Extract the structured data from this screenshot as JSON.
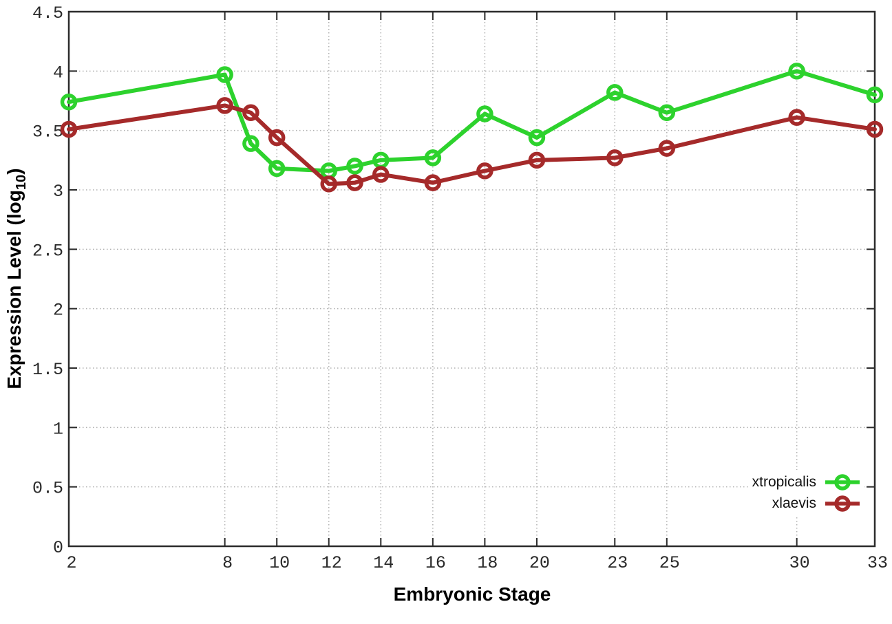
{
  "chart_data": {
    "type": "line",
    "title": "",
    "xlabel": "Embryonic Stage",
    "ylabel": "Expression Level (log10)",
    "ylabel_parts": {
      "main": "Expression Level (log",
      "sub": "10",
      "close": ")"
    },
    "x": [
      2,
      8,
      9,
      10,
      12,
      13,
      14,
      16,
      18,
      20,
      23,
      25,
      30,
      33
    ],
    "series": [
      {
        "name": "xtropicalis",
        "color": "#2dd22d",
        "marker": "open-circle",
        "values": [
          3.74,
          3.97,
          3.39,
          3.18,
          3.16,
          3.2,
          3.25,
          3.27,
          3.64,
          3.44,
          3.82,
          3.65,
          4.0,
          3.8
        ]
      },
      {
        "name": "xlaevis",
        "color": "#a52a2a",
        "marker": "open-circle",
        "values": [
          3.51,
          3.71,
          3.65,
          3.44,
          3.05,
          3.06,
          3.13,
          3.06,
          3.16,
          3.25,
          3.27,
          3.35,
          3.61,
          3.51
        ]
      }
    ],
    "xlim": [
      2,
      33
    ],
    "ylim": [
      0,
      4.5
    ],
    "x_ticks": [
      2,
      8,
      10,
      12,
      14,
      16,
      18,
      20,
      23,
      25,
      30,
      33
    ],
    "y_ticks": [
      0,
      0.5,
      1,
      1.5,
      2,
      2.5,
      3,
      3.5,
      4,
      4.5
    ],
    "x_tick_labels": [
      "2",
      "8",
      "10",
      "12",
      "14",
      "16",
      "18",
      "20",
      "23",
      "25",
      "30",
      "33"
    ],
    "y_tick_labels": [
      "0",
      "0.5",
      "1",
      "1.5",
      "2",
      "2.5",
      "3",
      "3.5",
      "4",
      "4.5"
    ],
    "grid": true,
    "legend_position": "bottom-right"
  },
  "legend": {
    "items": [
      {
        "label": "xtropicalis",
        "color": "#2dd22d"
      },
      {
        "label": "xlaevis",
        "color": "#a52a2a"
      }
    ]
  },
  "colors": {
    "background": "#ffffff",
    "axis": "#2b2b2b",
    "grid": "#b0b0b0",
    "tick_text": "#2a2a2a",
    "series_green": "#2dd22d",
    "series_red": "#a52a2a"
  }
}
